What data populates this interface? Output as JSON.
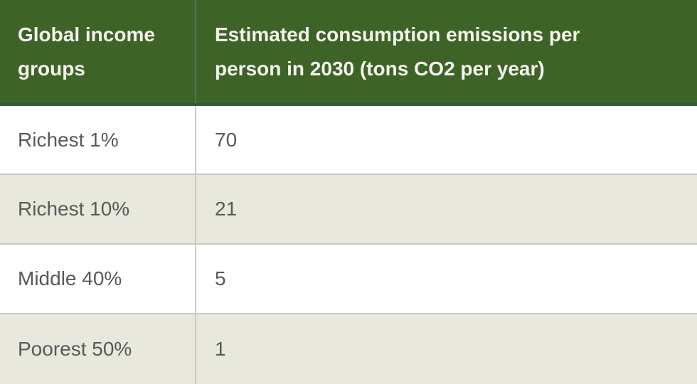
{
  "chart_data": {
    "type": "table",
    "columns": [
      "Global income groups",
      "Estimated consumption emissions per person in 2030 (tons CO2 per year)"
    ],
    "rows": [
      [
        "Richest 1%",
        70
      ],
      [
        "Richest 10%",
        21
      ],
      [
        "Middle 40%",
        5
      ],
      [
        "Poorest 50%",
        1
      ]
    ],
    "units": "tons CO2 per year"
  },
  "table": {
    "headers": {
      "group": "Global income groups",
      "emissions": "Estimated consumption emissions per person in 2030 (tons CO2 per year)"
    },
    "rows": [
      {
        "group": "Richest 1%",
        "value": "70"
      },
      {
        "group": "Richest 10%",
        "value": "21"
      },
      {
        "group": "Middle 40%",
        "value": "5"
      },
      {
        "group": "Poorest 50%",
        "value": "1"
      }
    ]
  },
  "colors": {
    "header_bg": "#3d6326",
    "header_text": "#f4f3ee",
    "header_column_divider": "#47795c",
    "header_bottom_border": "#2e5c3c",
    "row_bg": "#ffffff",
    "row_alt_bg": "#e9e8dc",
    "row_divider": "#c9c9c1",
    "column_divider": "#cbcbc6",
    "body_text": "#58595a"
  }
}
